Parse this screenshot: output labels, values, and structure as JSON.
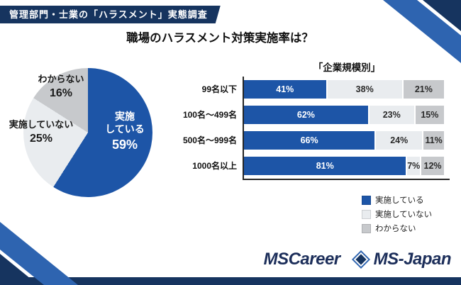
{
  "banner": {
    "text": "管理部門・士業の「ハラスメント」実態調査"
  },
  "page_title": "職場のハラスメント対策実施率は？",
  "colors": {
    "primary_blue": "#1d55a7",
    "light_gray": "#e9ecef",
    "mid_gray": "#c7c9cc",
    "navy": "#16345f",
    "band_blue": "#2e64b0"
  },
  "pie_labels": {
    "jisshi": {
      "line1": "実施",
      "line2": "している",
      "pct": "59%"
    },
    "mijisshi": {
      "label": "実施していない",
      "pct": "25%"
    },
    "wakaranai": {
      "label": "わからない",
      "pct": "16%"
    }
  },
  "legend": {
    "items": [
      {
        "label": "実施している",
        "color": "#1d55a7"
      },
      {
        "label": "実施していない",
        "color": "#e9ecef"
      },
      {
        "label": "わからない",
        "color": "#c7c9cc"
      }
    ]
  },
  "footer": {
    "brand1": "MSCareer",
    "brand2": "MS-Japan"
  },
  "chart_data": [
    {
      "type": "pie",
      "title": "職場のハラスメント対策実施率は？",
      "labels": [
        "実施している",
        "実施していない",
        "わからない"
      ],
      "values": [
        59,
        25,
        16
      ],
      "unit": "%",
      "colors": [
        "#1d55a7",
        "#e9ecef",
        "#c7c9cc"
      ]
    },
    {
      "type": "bar",
      "stacked": true,
      "orientation": "horizontal",
      "title": "「企業規模別」",
      "categories": [
        "99名以下",
        "100名〜499名",
        "500名〜999名",
        "1000名以上"
      ],
      "series": [
        {
          "name": "実施している",
          "color": "#1d55a7",
          "values": [
            41,
            62,
            66,
            81
          ]
        },
        {
          "name": "実施していない",
          "color": "#e9ecef",
          "values": [
            38,
            23,
            24,
            7
          ]
        },
        {
          "name": "わからない",
          "color": "#c7c9cc",
          "values": [
            21,
            15,
            11,
            12
          ]
        }
      ],
      "xlim": [
        0,
        100
      ],
      "unit": "%",
      "legend_position": "bottom-right",
      "grid": false
    }
  ]
}
